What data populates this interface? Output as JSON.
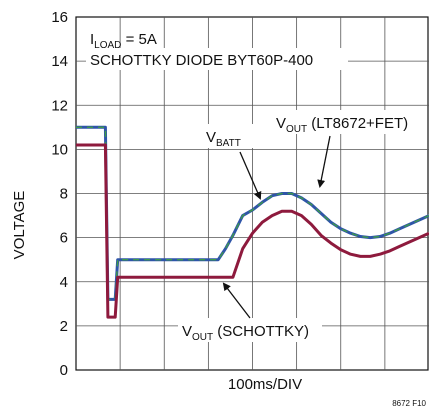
{
  "chart_data": {
    "type": "line",
    "ylabel": "VOLTAGE",
    "xlabel": "100ms/DIV",
    "ylim": [
      0,
      16
    ],
    "yticks": [
      0,
      2,
      4,
      6,
      8,
      10,
      12,
      14,
      16
    ],
    "xlim": [
      0,
      7.2
    ],
    "x_divisions": 8,
    "grid": true,
    "annotations": {
      "iload_sym": "I",
      "iload_sub": "LOAD",
      "iload_val": " = 5A",
      "diode": "SCHOTTKY DIODE BYT60P-400",
      "vbatt_sym": "V",
      "vbatt_sub": "BATT",
      "vout_fet_sym": "V",
      "vout_fet_sub": "OUT",
      "vout_fet_text": " (LT8672+FET)",
      "vout_sch_sym": "V",
      "vout_sch_sub": "OUT",
      "vout_sch_text": " (SCHOTTKY)"
    },
    "figure_id": "8672 F10",
    "series": [
      {
        "color": "#2f55a8",
        "dash_color": "#3f9a4a",
        "x": [
          0,
          0.6,
          0.65,
          0.74,
          0.8,
          0.85,
          1.2,
          1.5,
          2.0,
          2.5,
          2.9,
          3.05,
          3.2,
          3.4,
          3.6,
          3.8,
          4.0,
          4.2,
          4.4,
          4.6,
          4.8,
          5.0,
          5.2,
          5.4,
          5.6,
          5.8,
          6.0,
          6.2,
          6.4,
          6.6,
          6.8,
          7.0,
          7.2
        ],
        "values": [
          11.0,
          11.0,
          3.2,
          3.2,
          3.2,
          5.0,
          5.0,
          5.0,
          5.0,
          5.0,
          5.0,
          5.5,
          6.1,
          7.0,
          7.25,
          7.6,
          7.9,
          8.0,
          8.0,
          7.8,
          7.5,
          7.1,
          6.7,
          6.4,
          6.2,
          6.05,
          6.0,
          6.05,
          6.2,
          6.4,
          6.6,
          6.8,
          7.0
        ]
      },
      {
        "color": "#8e1a3d",
        "x": [
          0,
          0.6,
          0.65,
          0.74,
          0.8,
          0.85,
          1.2,
          1.5,
          2.0,
          2.5,
          2.9,
          3.05,
          3.2,
          3.4,
          3.6,
          3.8,
          4.0,
          4.2,
          4.4,
          4.6,
          4.8,
          5.0,
          5.2,
          5.4,
          5.6,
          5.8,
          6.0,
          6.2,
          6.4,
          6.6,
          6.8,
          7.0,
          7.2
        ],
        "values": [
          10.2,
          10.2,
          2.4,
          2.4,
          2.4,
          4.2,
          4.2,
          4.2,
          4.2,
          4.2,
          4.2,
          4.2,
          4.2,
          5.5,
          6.2,
          6.7,
          7.0,
          7.2,
          7.2,
          7.0,
          6.6,
          6.1,
          5.75,
          5.45,
          5.25,
          5.15,
          5.15,
          5.25,
          5.4,
          5.6,
          5.8,
          6.0,
          6.2
        ]
      }
    ]
  }
}
